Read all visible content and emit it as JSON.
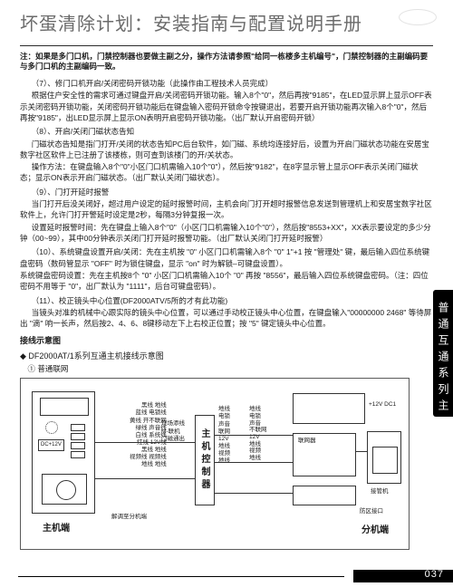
{
  "title": "坏蛋清除计划：安装指南与配置说明手册",
  "note_block": "注：如果是多门口机，门禁控制器也要做主副之分，操作方法请参照\"给同一栋楼多主机编号\"，门禁控制器的主副编码要与多门口机的主副编码一致。",
  "p7": "（7）、修门口机开启/关闭密码开锁功能（此操作由工程技术人员完成）",
  "p7t": "根据住户安全性的需求可通过键盘开启/关闭密码开锁功能。输入8个\"0\"，然后再按\"9185\"，在LED显示屏上显示OFF表示关闭密码开锁功能，关闭密码开锁功能后在键盘输入密码开锁命令按键退出，若要开启开锁功能再次输入8个\"0\"，然后再按\"9185\"，出LED显示屏上显示ON表明开启密码开锁功能。（出厂默认开启密码开锁）",
  "p8": "（8）、开启/关闭门磁状态告知",
  "p8t1": "门磁状态告知是指门打开/关闭的状态告知PC后台软件，如门磁、系统均连接好后，设置为开启门磁状态功能在安居宝数字社区软件上已注册了该楼栋，则可查到该楼门的开/关状态。",
  "p8t2": "操作方法：在键盘输入8个\"0\"小区门口机需输入10个\"0\"），然后按\"9182\"，在8字显示管上显示OFF表示关闭门磁状态；显示ON表示开启门磁状态。（出厂默认关闭门磁状态）。",
  "p9": "（9）、门打开延时报警",
  "p9t1": "当门打开后没关闭好，超过用户设定的延时报警时间，主机会向门打开超时报警信息发送到管理机上和安居宝数字社区软件上，允许门打开警延时设定是2秒，每隔3分钟复报一次。",
  "p9t2": "设置延时报警时间：先在键盘上输入8个\"0\"（小区门口机需输入10个\"0\"），然后按\"8553+XX\"，XX表示要设定的多少分钟（00~99），其中00分钟表示关闭门打开延时报警功能。（出厂默认关闭门打开延时报警）",
  "p10t1": "（10）、系统键盘设置开启/关闭：先在主机按 \"0\" 小区门口机需输入8个 \"0\" 1\"+1 按 \"管理处\" 键，最后输入四位系统键盘密码（数码管显示 \"OFF\" 时为锁住键盘，显示 \"on\" 时为解锁–可键盘设置）。",
  "p10t2": "系统键盘密码设置：先在主机按8个 \"0\" 小区门口机需输入10个 \"0\" 再按 \"8556\"，最后输入四位系统键盘密码。（注：四位密码不用等于 \"0\"，出厂默认为 \"1111\"，后台可键盘密码）。",
  "p11": "（11）、校正镜头中心位置(DF2000ATV/5所的才有此功能)",
  "p11t1": "当镜头对准的机械中心跟实际的镜头中心位置，可以通过手动校正镜头中心位置，在键盘输入\"00000000 2468\" 等待屏出 \"滴\" 响一长声，然后按2、4、6、8键移动左下上右校正位置；按 \"5\" 键定镜头中心位置。",
  "diag_head": "接线示意图",
  "diag_sub": "◆ DF2000AT/1系列互通主机接线示意图",
  "diag_cap": "① 普通联网",
  "host_label": "主机端",
  "ctrl_label": "主机控制器",
  "ext_label": "分机端",
  "dc_label": "DC+12V",
  "wires_left": [
    "黑线 地线",
    "蓝线 电锁线",
    "黄线 开不联网",
    "绿线 声音线",
    "白线 系统线",
    "红线 12V线",
    "黑线 地线",
    "视频线 视频线",
    "地线 地线"
  ],
  "wires_mid": [
    "现场添线",
    "M-联机",
    "门磁通出"
  ],
  "wires_right": [
    "地线",
    "电锁",
    "声音",
    "联网",
    "12V",
    "地线",
    "视频",
    "地线"
  ],
  "note_small": "解调至分机端",
  "sub_wires": [
    "地线",
    "电锁",
    "声音",
    "不联网",
    "12V",
    "地线",
    "视频",
    "地线"
  ],
  "sb_label1": "+12V DC1",
  "sb_label2": "联网器",
  "sb_label3": "接管机",
  "ext_port": "防区接口",
  "side_tab": "普通互通系列主机",
  "page_no": "037"
}
